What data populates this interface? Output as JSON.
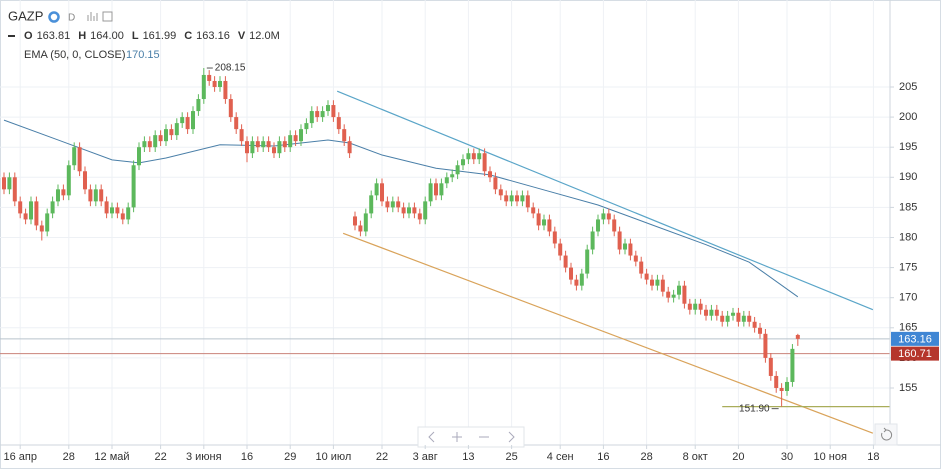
{
  "chart_data": {
    "type": "candlestick",
    "header": {
      "symbol": "GAZP",
      "interval": "D",
      "stats": [
        {
          "label": "O",
          "value": "163.81"
        },
        {
          "label": "H",
          "value": "164.00"
        },
        {
          "label": "L",
          "value": "161.99"
        },
        {
          "label": "C",
          "value": "163.16"
        },
        {
          "label": "V",
          "value": "12.0M"
        }
      ]
    },
    "up_color": "#5cb85c",
    "down_color": "#e0604f",
    "open": [
      190,
      188,
      190,
      186,
      184,
      183,
      186,
      182,
      181,
      184,
      186,
      188,
      187,
      192,
      195,
      191,
      188,
      186,
      188,
      186,
      184,
      185,
      184,
      183,
      185,
      192,
      195,
      196,
      195,
      197,
      196,
      198,
      197,
      199,
      200,
      198,
      201,
      203,
      207,
      206,
      205,
      206,
      203,
      200,
      198,
      196,
      194,
      196,
      195,
      196,
      195,
      194,
      196,
      195,
      197,
      196,
      198,
      199,
      201,
      200,
      201,
      202,
      200,
      198,
      196,
      183.5,
      182,
      181,
      184,
      187,
      189,
      186,
      185,
      186,
      185,
      184,
      185,
      184,
      183,
      186,
      189,
      187,
      189,
      190,
      190.5,
      192,
      193,
      194,
      193,
      194,
      191,
      190,
      188,
      187,
      186,
      187,
      186,
      187,
      185,
      184,
      182,
      183,
      181,
      179,
      177,
      175,
      173,
      172,
      174,
      178,
      181,
      183,
      184,
      183,
      181,
      178,
      179,
      177,
      176,
      174,
      173,
      172,
      173,
      171,
      170,
      170.5,
      172,
      169,
      168,
      169,
      168,
      167,
      168,
      167,
      166,
      167,
      167.5,
      166,
      167,
      166,
      165,
      164,
      160,
      157,
      155,
      154.5,
      156,
      163.81
    ],
    "high": [
      190.8,
      190.8,
      190.8,
      186.8,
      184.8,
      186.8,
      186.8,
      182.8,
      184.8,
      186.8,
      188.8,
      188.8,
      192.8,
      195.8,
      195.8,
      191.8,
      188.8,
      188.8,
      188.8,
      186.8,
      185.8,
      185.8,
      184.8,
      185.8,
      192.8,
      195.8,
      196.8,
      196.8,
      197.8,
      197.8,
      198.8,
      198.8,
      199.8,
      200.8,
      200.8,
      201.8,
      203.8,
      208.15,
      207.8,
      206.8,
      206.8,
      206.8,
      203.8,
      200.8,
      198.8,
      196.8,
      196.8,
      196.8,
      196.8,
      196.8,
      195.8,
      196.8,
      196.8,
      197.8,
      197.8,
      198.8,
      199.8,
      201.8,
      201.8,
      201.8,
      202.8,
      202.8,
      200.8,
      198.8,
      196.8,
      184.3,
      182.8,
      184.8,
      187.8,
      189.8,
      189.8,
      186.8,
      186.8,
      186.8,
      185.8,
      185.8,
      185.8,
      184.8,
      186.8,
      189.8,
      189.8,
      189.8,
      190.8,
      191.3,
      192.8,
      193.8,
      194.8,
      194.8,
      194.8,
      194.8,
      191.8,
      190.8,
      188.8,
      187.8,
      187.8,
      187.8,
      187.8,
      187.8,
      185.8,
      184.8,
      183.8,
      183.8,
      181.8,
      179.8,
      177.8,
      175.8,
      173.8,
      174.8,
      178.8,
      181.8,
      183.8,
      184.8,
      184.8,
      183.8,
      181.8,
      179.8,
      179.8,
      177.8,
      176.8,
      174.8,
      173.8,
      173.8,
      173.8,
      171.8,
      171.3,
      172.8,
      172.8,
      169.8,
      169.8,
      169.8,
      168.8,
      168.8,
      168.8,
      167.8,
      167.8,
      168.3,
      168.3,
      167.8,
      167.8,
      166.8,
      165.8,
      164.8,
      160.8,
      157.8,
      155.8,
      156.8,
      162.3,
      164.0
    ],
    "low": [
      187.2,
      187.2,
      185.2,
      183.2,
      182.2,
      182.2,
      181.2,
      179.5,
      180.2,
      183.2,
      185.2,
      186.2,
      186.2,
      191.2,
      190.2,
      187.2,
      185.2,
      185.2,
      185.2,
      183.2,
      183.2,
      183.2,
      182.2,
      182.2,
      184.2,
      191.2,
      194.2,
      194.2,
      194.2,
      195.2,
      195.2,
      196.2,
      196.2,
      198.2,
      197.2,
      197.2,
      200.2,
      202.2,
      205.2,
      204.2,
      204.2,
      202.2,
      199.2,
      197.2,
      195.2,
      192.5,
      193.2,
      194.2,
      194.2,
      194.2,
      193.2,
      193.2,
      194.2,
      194.2,
      195.2,
      195.2,
      197.2,
      198.2,
      199.2,
      199.2,
      200.2,
      199.2,
      197.2,
      195.2,
      193.2,
      181.2,
      180.2,
      180.2,
      183.2,
      186.2,
      185.2,
      184.2,
      184.2,
      184.2,
      183.2,
      183.2,
      183.2,
      182.2,
      182.2,
      185.2,
      186.2,
      186.2,
      188.2,
      189.2,
      189.7,
      191.2,
      192.2,
      192.2,
      192.2,
      190.2,
      189.2,
      187.2,
      186.2,
      185.2,
      185.2,
      185.2,
      185.2,
      184.2,
      183.2,
      181.2,
      181.2,
      180.2,
      178.2,
      176.2,
      174.2,
      172.2,
      171.2,
      171.2,
      173.2,
      177.2,
      180.2,
      182.2,
      182.2,
      180.2,
      177.2,
      177.2,
      176.2,
      175.2,
      173.2,
      172.2,
      171.2,
      171.2,
      170.2,
      169.2,
      169.2,
      169.7,
      168.2,
      167.2,
      167.2,
      167.2,
      166.2,
      166.2,
      166.2,
      165.2,
      165.2,
      166.2,
      165.2,
      165.2,
      165.2,
      164.2,
      163.2,
      159.2,
      156.2,
      154.2,
      151.9,
      153.7,
      155.2,
      161.99
    ],
    "close": [
      188,
      190,
      186,
      184,
      183,
      186,
      182,
      181,
      184,
      186,
      188,
      187,
      192,
      195,
      191,
      188,
      186,
      188,
      186,
      184,
      185,
      184,
      183,
      185,
      192,
      195,
      196,
      195,
      197,
      196,
      198,
      197,
      199,
      200,
      198,
      201,
      203,
      207,
      206,
      205,
      206,
      203,
      200,
      198,
      196,
      194,
      196,
      195,
      196,
      195,
      194,
      196,
      195,
      197,
      196,
      198,
      199,
      201,
      200,
      201,
      202,
      200,
      198,
      196,
      194,
      182,
      181,
      184,
      187,
      189,
      186,
      185,
      186,
      185,
      184,
      185,
      184,
      183,
      186,
      189,
      187,
      189,
      190,
      190.5,
      192,
      193,
      194,
      193,
      194,
      191,
      190,
      188,
      187,
      186,
      187,
      186,
      187,
      185,
      184,
      182,
      183,
      181,
      179,
      177,
      175,
      173,
      172,
      174,
      178,
      181,
      183,
      184,
      183,
      181,
      178,
      179,
      177,
      176,
      174,
      173,
      172,
      173,
      171,
      170,
      170.5,
      172,
      169,
      168,
      169,
      168,
      167,
      168,
      167,
      166,
      167,
      167.5,
      166,
      167,
      166,
      165,
      164,
      160,
      157,
      155,
      154.5,
      156,
      161.5,
      163.16
    ],
    "ema": {
      "name": "EMA (50, 0, CLOSE)",
      "last": 170.15,
      "color": "#4a7fa8",
      "x": [
        0,
        10,
        20,
        25,
        30,
        40,
        50,
        60,
        64,
        70,
        80,
        90,
        100,
        110,
        120,
        130,
        138,
        147
      ],
      "values": [
        199.5,
        196.2,
        192.9,
        192.4,
        193.2,
        195.4,
        195.2,
        196.2,
        195.7,
        193.7,
        191.5,
        190.4,
        187.9,
        185.4,
        182.1,
        178.8,
        175.9,
        170.15
      ]
    },
    "trend_lines": [
      {
        "color": "#5aa5c8",
        "x": [
          61.7,
          160.9
        ],
        "values": [
          204.3,
          168.0
        ]
      },
      {
        "color": "#d9a35a",
        "x": [
          62.8,
          160.9
        ],
        "values": [
          180.7,
          147.5
        ]
      },
      {
        "color": "#a9ad5a",
        "x": [
          133,
          164
        ],
        "values": [
          151.9,
          151.9
        ]
      }
    ],
    "price_lines": [
      {
        "value": 163.16,
        "color": "#3f86d4",
        "line": "#b9c3cc"
      },
      {
        "value": 160.71,
        "color": "#b5362c",
        "line": "#c9837a"
      }
    ],
    "annotations": [
      {
        "x": 37,
        "value": 208.15
      },
      {
        "x": 144,
        "value": {
          "value": 151.9,
          "label": "151.90"
        }
      }
    ],
    "xlim": [
      -0.74,
      164.07
    ],
    "ylim": [
      145.53,
      219.45
    ],
    "xticks": [
      {
        "value": 3,
        "label": "16 апр"
      },
      {
        "value": 12,
        "label": "28"
      },
      {
        "value": 20,
        "label": "12 май"
      },
      {
        "value": 29,
        "label": "22"
      },
      {
        "value": 37,
        "label": "3 июня"
      },
      {
        "value": 45,
        "label": "16"
      },
      {
        "value": 53,
        "label": "29"
      },
      {
        "value": 61,
        "label": "10 июл"
      },
      {
        "value": 70,
        "label": "22"
      },
      {
        "value": 78,
        "label": "3 авг"
      },
      {
        "value": 86,
        "label": "13"
      },
      {
        "value": 94,
        "label": "25"
      },
      {
        "value": 103,
        "label": "4 сен"
      },
      {
        "value": 111,
        "label": "16"
      },
      {
        "value": 119,
        "label": "28"
      },
      {
        "value": 128,
        "label": "8 окт"
      },
      {
        "value": 136,
        "label": "20"
      },
      {
        "value": 145,
        "label": "30"
      },
      {
        "value": 153,
        "label": "10 ноя"
      },
      {
        "value": 161,
        "label": "18"
      }
    ],
    "yticks": [
      155,
      160,
      165,
      170,
      175,
      180,
      185,
      190,
      195,
      200,
      205
    ],
    "grid": true
  }
}
